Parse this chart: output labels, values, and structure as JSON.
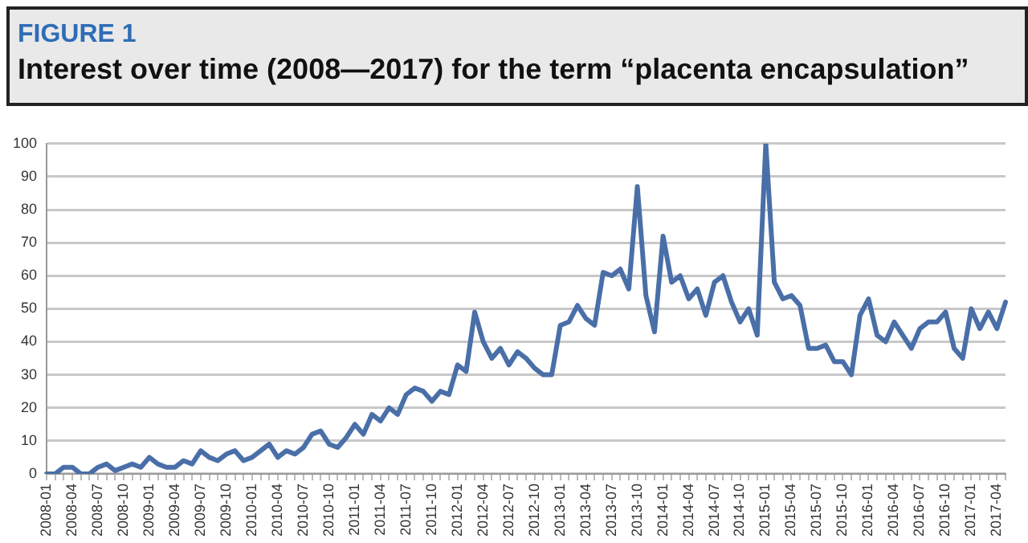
{
  "chart_data": {
    "type": "line",
    "title": "FIGURE 1",
    "subtitle": "Interest over time (2008—2017) for the term “placenta encapsulation”",
    "categories": [
      "2008-01",
      null,
      null,
      "2008-04",
      null,
      null,
      "2008-07",
      null,
      null,
      "2008-10",
      null,
      null,
      "2009-01",
      null,
      null,
      "2009-04",
      null,
      null,
      "2009-07",
      null,
      null,
      "2009-10",
      null,
      null,
      "2010-01",
      null,
      null,
      "2010-04",
      null,
      null,
      "2010-07",
      null,
      null,
      "2010-10",
      null,
      null,
      "2011-01",
      null,
      null,
      "2011-04",
      null,
      null,
      "2011-07",
      null,
      null,
      "2011-10",
      null,
      null,
      "2012-01",
      null,
      null,
      "2012-04",
      null,
      null,
      "2012-07",
      null,
      null,
      "2012-10",
      null,
      null,
      "2013-01",
      null,
      null,
      "2013-04",
      null,
      null,
      "2013-07",
      null,
      null,
      "2013-10",
      null,
      null,
      "2014-01",
      null,
      null,
      "2014-04",
      null,
      null,
      "2014-07",
      null,
      null,
      "2014-10",
      null,
      null,
      "2015-01",
      null,
      null,
      "2015-04",
      null,
      null,
      "2015-07",
      null,
      null,
      "2015-10",
      null,
      null,
      "2016-01",
      null,
      null,
      "2016-04",
      null,
      null,
      "2016-07",
      null,
      null,
      "2016-10",
      null,
      null,
      "2017-01",
      null,
      null,
      "2017-04",
      null
    ],
    "series": [
      {
        "color": "#4a6fa8",
        "values": [
          0,
          0,
          2,
          2,
          0,
          0,
          2,
          3,
          1,
          2,
          3,
          2,
          5,
          3,
          2,
          2,
          4,
          3,
          7,
          5,
          4,
          6,
          7,
          4,
          5,
          7,
          9,
          5,
          7,
          6,
          8,
          12,
          13,
          9,
          8,
          11,
          15,
          12,
          18,
          16,
          20,
          18,
          24,
          26,
          25,
          22,
          25,
          24,
          33,
          31,
          49,
          40,
          35,
          38,
          33,
          37,
          35,
          32,
          30,
          30,
          45,
          46,
          51,
          47,
          45,
          61,
          60,
          62,
          56,
          87,
          54,
          43,
          72,
          58,
          60,
          53,
          56,
          48,
          58,
          60,
          52,
          46,
          50,
          42,
          100,
          58,
          53,
          54,
          51,
          38,
          38,
          39,
          34,
          34,
          30,
          48,
          53,
          42,
          40,
          46,
          42,
          38,
          44,
          46,
          46,
          49,
          38,
          35,
          50,
          44,
          49,
          44,
          52
        ]
      }
    ],
    "ylim": [
      0,
      100
    ],
    "yticks": [
      0,
      10,
      20,
      30,
      40,
      50,
      60,
      70,
      80,
      90,
      100
    ],
    "grid": "y",
    "legend": false,
    "marker": "none",
    "line_style": "solid"
  }
}
